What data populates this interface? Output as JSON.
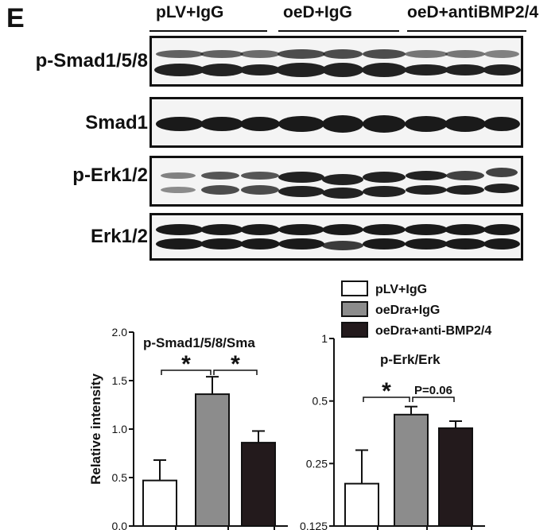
{
  "panel_letter": "E",
  "groups": [
    "pLV+IgG",
    "oeD+IgG",
    "oeD+antiBMP2/4"
  ],
  "blot_rows": [
    "p-Smad1/5/8",
    "Smad1",
    "p-Erk1/2",
    "Erk1/2"
  ],
  "legend": [
    {
      "label": "pLV+IgG",
      "color": "#ffffff"
    },
    {
      "label": "oeDra+IgG",
      "color": "#8c8c8c"
    },
    {
      "label": "oeDra+anti-BMP2/4",
      "color": "#231a1c"
    }
  ],
  "chart_data": [
    {
      "type": "bar",
      "title": "p-Smad1/5/8/Sma",
      "ylabel": "Relative intensity",
      "ylim": [
        0.0,
        2.0
      ],
      "yticks": [
        "0.0",
        "0.5",
        "1.0",
        "1.5",
        "2.0"
      ],
      "ytick_values": [
        0.0,
        0.5,
        1.0,
        1.5,
        2.0
      ],
      "values": [
        0.47,
        1.36,
        0.86
      ],
      "errors": [
        0.21,
        0.18,
        0.12
      ],
      "colors": [
        "#ffffff",
        "#8c8c8c",
        "#231a1c"
      ],
      "annotations": [
        {
          "text": "*",
          "from": 0,
          "to": 1
        },
        {
          "text": "*",
          "from": 1,
          "to": 2
        }
      ]
    },
    {
      "type": "bar",
      "title": "p-Erk/Erk",
      "log_scale": true,
      "ylim": [
        0.125,
        1.0
      ],
      "yticks": [
        "0.125",
        "0.25",
        "0.5",
        "1"
      ],
      "ytick_values": [
        0.125,
        0.25,
        0.5,
        1.0
      ],
      "values": [
        0.2,
        0.43,
        0.37
      ],
      "errors": [
        0.09,
        0.04,
        0.03
      ],
      "colors": [
        "#ffffff",
        "#8c8c8c",
        "#231a1c"
      ],
      "annotations": [
        {
          "text": "*",
          "from": 0,
          "to": 1
        },
        {
          "text": "P=0.06",
          "from": 1,
          "to": 2
        }
      ]
    }
  ]
}
